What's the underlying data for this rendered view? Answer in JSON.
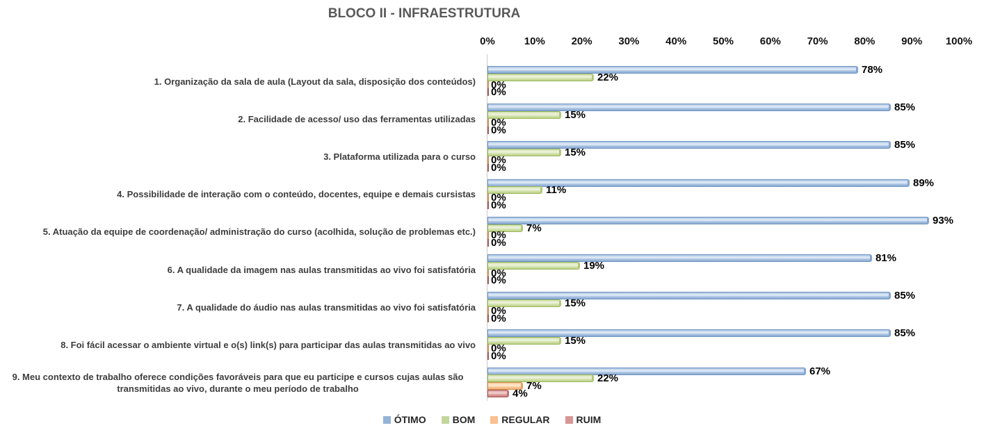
{
  "title": "BLOCO II - INFRAESTRUTURA",
  "chart_data": {
    "type": "bar",
    "orientation": "horizontal",
    "title": "BLOCO II - INFRAESTRUTURA",
    "legend_position": "bottom",
    "grid": false,
    "value_axis": {
      "position": "top",
      "min": 0,
      "max": 100,
      "ticks": [
        "0%",
        "10%",
        "20%",
        "30%",
        "40%",
        "50%",
        "60%",
        "70%",
        "80%",
        "90%",
        "100%"
      ]
    },
    "data_label_suffix": "%",
    "categories": [
      "1. Organização da sala de aula (Layout da sala, disposição dos conteúdos)",
      "2. Facilidade de acesso/ uso das ferramentas utilizadas",
      "3. Plataforma utilizada para o curso",
      "4. Possibilidade de interação com o conteúdo, docentes, equipe e demais cursistas",
      "5. Atuação da equipe de coordenação/ administração do curso (acolhida, solução de problemas etc.)",
      "6. A qualidade da imagem nas aulas transmitidas ao vivo foi satisfatória",
      "7. A qualidade do áudio nas aulas transmitidas ao vivo foi satisfatória",
      "8. Foi fácil acessar o ambiente virtual e o(s) link(s) para participar das aulas transmitidas ao vivo",
      "9. Meu contexto de trabalho oferece condições favoráveis para que eu participe e cursos cujas aulas são transmitidas ao vivo, durante o meu período de trabalho"
    ],
    "series": [
      {
        "name": "ÓTIMO",
        "values": [
          78,
          85,
          85,
          89,
          93,
          81,
          85,
          85,
          67
        ],
        "colors": {
          "legend": "#95b3d7",
          "light": "#dce8f5",
          "base": "#a4bfdf",
          "dark": "#8cabd1",
          "border": "#6f94c2",
          "cap": "#85a5cf"
        }
      },
      {
        "name": "BOM",
        "values": [
          22,
          15,
          15,
          11,
          7,
          19,
          15,
          15,
          22
        ],
        "colors": {
          "legend": "#c3d69b",
          "light": "#eaf1d8",
          "base": "#cfdfa6",
          "dark": "#bcd188",
          "border": "#9ab75c",
          "cap": "#b0c878"
        }
      },
      {
        "name": "REGULAR",
        "values": [
          0,
          0,
          0,
          0,
          0,
          0,
          0,
          0,
          7
        ],
        "colors": {
          "legend": "#fac090",
          "light": "#fde7cb",
          "base": "#fac392",
          "dark": "#f3ad74",
          "border": "#d0914f",
          "cap": "#e8a263"
        }
      },
      {
        "name": "RUIM",
        "values": [
          0,
          0,
          0,
          0,
          0,
          0,
          0,
          0,
          4
        ],
        "colors": {
          "legend": "#d99694",
          "light": "#efccca",
          "base": "#d99694",
          "dark": "#ca7d7a",
          "border": "#a65d5a",
          "cap": "#bd7370"
        }
      }
    ]
  },
  "style_colors": {
    "title_text": "#595959",
    "axis_line": "#c9c9c9",
    "tick_text": "#111111",
    "category_text": "#3d3d3d",
    "data_label_text": "#000000",
    "legend_text": "#262626",
    "background": "#ffffff"
  }
}
